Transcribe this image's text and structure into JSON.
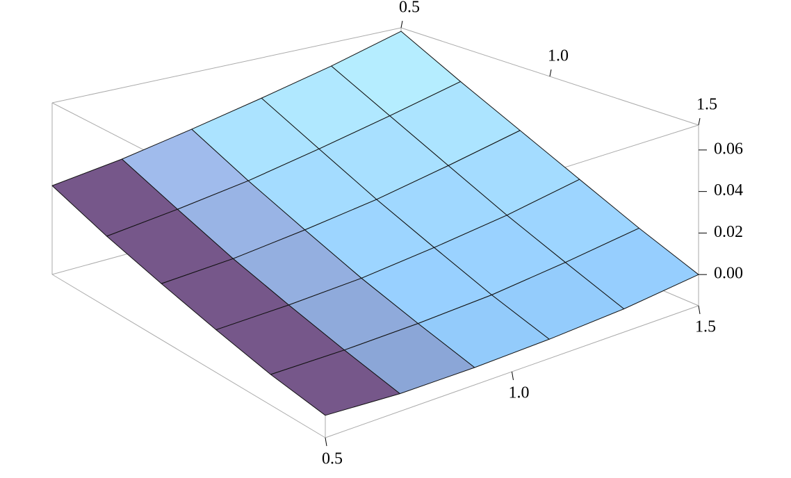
{
  "chart_data": {
    "type": "surface",
    "x": [
      0.5,
      0.7,
      0.9,
      1.1,
      1.3,
      1.5
    ],
    "y": [
      0.5,
      0.7,
      0.9,
      1.1,
      1.3,
      1.5
    ],
    "z": [
      [
        0.03,
        0.035,
        0.042,
        0.05,
        0.059,
        0.07
      ],
      [
        0.02,
        0.024,
        0.029,
        0.036,
        0.044,
        0.053
      ],
      [
        0.012,
        0.014,
        0.018,
        0.023,
        0.03,
        0.038
      ],
      [
        0.005,
        0.006,
        0.008,
        0.012,
        0.017,
        0.024
      ],
      [
        -0.001,
        -0.001,
        0.0,
        0.002,
        0.006,
        0.011
      ],
      [
        -0.005,
        -0.007,
        -0.007,
        -0.006,
        -0.004,
        0.0
      ]
    ],
    "xlim": [
      0.5,
      1.5
    ],
    "ylim": [
      0.5,
      1.5
    ],
    "zlim": [
      -0.015,
      0.072
    ],
    "xticks": [
      0.5,
      {
        "value": 1,
        "label": "1.0"
      },
      1.5
    ],
    "yticks": [
      0.5,
      {
        "value": 1,
        "label": "1.0"
      },
      1.5
    ],
    "zticks": [
      {
        "value": 0,
        "label": "0.00"
      },
      0.02,
      0.04,
      0.06
    ],
    "colors": {
      "low": "#6e3266",
      "high": "#8cc4f4",
      "mesh": "#111111"
    }
  }
}
